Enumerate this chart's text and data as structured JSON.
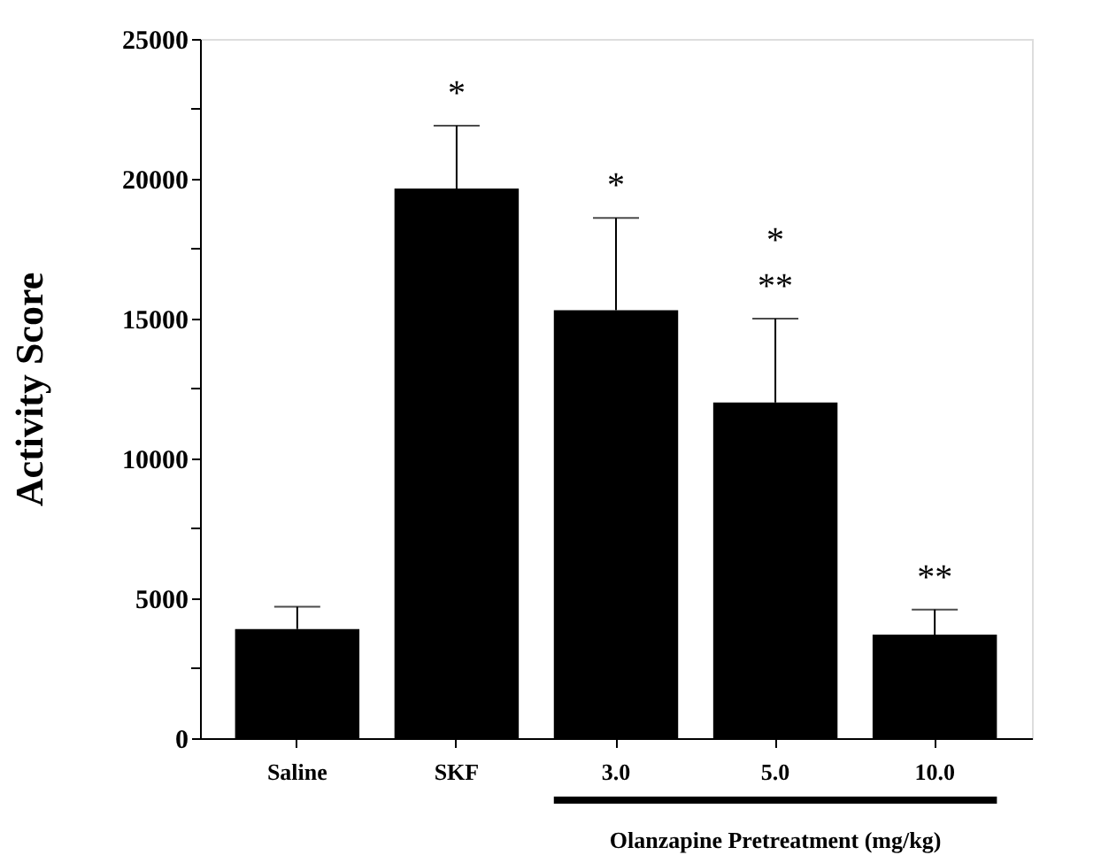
{
  "chart_data": {
    "type": "bar",
    "ylabel": "Activity Score",
    "categories": [
      "Saline",
      "SKF",
      "3.0",
      "5.0",
      "10.0"
    ],
    "values": [
      3900,
      19650,
      15300,
      12000,
      3700
    ],
    "errors": [
      [
        3900,
        4700
      ],
      [
        19650,
        21900
      ],
      [
        15300,
        18600
      ],
      [
        12000,
        15000
      ],
      [
        3700,
        4600
      ]
    ],
    "color": "#000000",
    "ylim": [
      0,
      25000
    ],
    "yticks": [
      0,
      {
        "value": 2500,
        "label": null
      },
      5000,
      {
        "value": 7500,
        "label": null
      },
      10000,
      {
        "value": 12500,
        "label": null
      },
      15000,
      {
        "value": 17500,
        "label": null
      },
      20000,
      {
        "value": 22500,
        "label": null
      },
      25000
    ],
    "grid": false,
    "annotations": [
      {
        "text": "*",
        "x": "SKF",
        "y": 21900
      },
      {
        "text": "*",
        "x": "3.0",
        "y": 18600
      },
      {
        "text": "*",
        "x": "5.0",
        "y": 15000
      },
      {
        "text": "**",
        "x": "5.0",
        "y": 15000
      },
      {
        "text": "**",
        "x": "10.0",
        "y": 4600
      },
      "Olanzapine Pretreatment (mg/kg)"
    ]
  }
}
